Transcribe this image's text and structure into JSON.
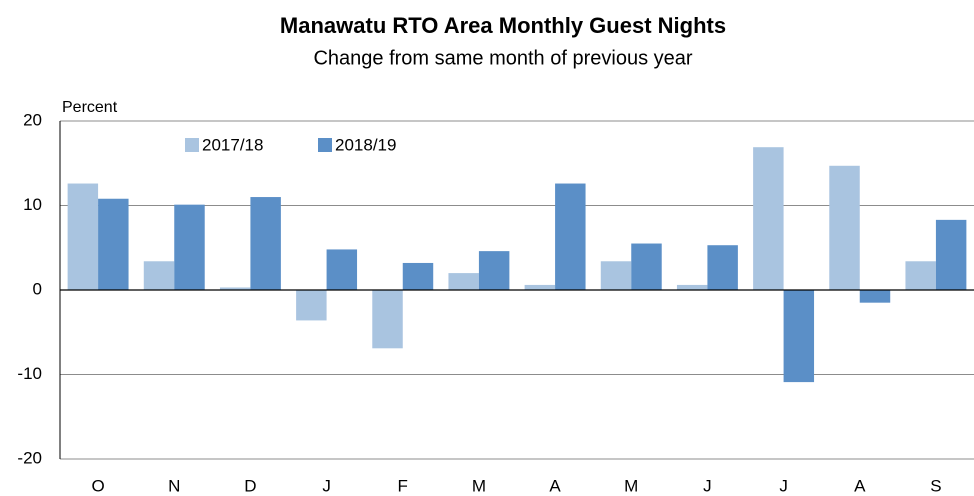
{
  "chart_data": {
    "type": "bar",
    "title": "Manawatu RTO Area Monthly Guest Nights",
    "subtitle": "Change from same month of previous  year",
    "y_label": "Percent",
    "categories": [
      "O",
      "N",
      "D",
      "J",
      "F",
      "M",
      "A",
      "M",
      "J",
      "J",
      "A",
      "S"
    ],
    "series": [
      {
        "name": "2017/18",
        "color": "#a9c4e0",
        "values": [
          12.6,
          3.4,
          0.3,
          -3.6,
          -6.9,
          2.0,
          0.6,
          3.4,
          0.6,
          16.9,
          14.7,
          3.4
        ]
      },
      {
        "name": "2018/19",
        "color": "#5b8fc7",
        "values": [
          10.8,
          10.1,
          11.0,
          4.8,
          3.2,
          4.6,
          12.6,
          5.5,
          5.3,
          -10.9,
          -1.5,
          8.3
        ]
      }
    ],
    "ylim": [
      -20,
      20
    ],
    "yticks": [
      -20,
      -10,
      0,
      10,
      20
    ],
    "grid": true,
    "legend": "top-left"
  }
}
